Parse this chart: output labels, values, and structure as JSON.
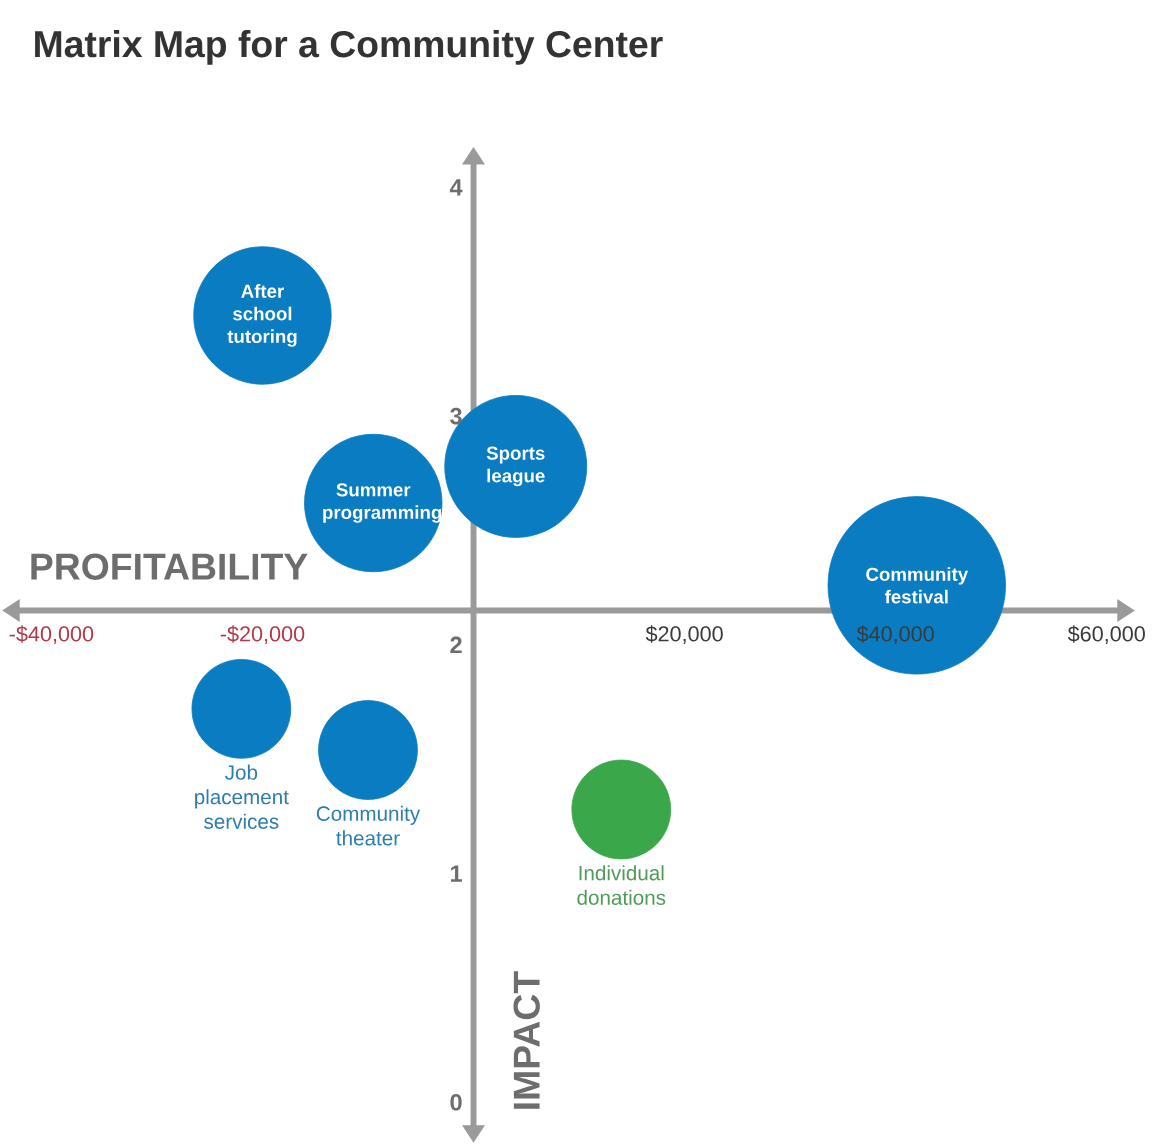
{
  "chart_data": {
    "type": "bubble",
    "title": "Matrix Map for a Community Center",
    "xlabel": "PROFITABILITY",
    "ylabel": "IMPACT",
    "xlim": [
      -43000,
      61000
    ],
    "ylim": [
      -0.1,
      4.1
    ],
    "xticks": [
      {
        "value": -40000,
        "label": "-$40,000"
      },
      {
        "value": -20000,
        "label": "-$20,000"
      },
      {
        "value": 20000,
        "label": "$20,000"
      },
      {
        "value": 40000,
        "label": "$40,000"
      },
      {
        "value": 60000,
        "label": "$60,000"
      }
    ],
    "yticks": [
      0,
      1,
      2,
      3,
      4
    ],
    "series": [
      {
        "color": "#0a7cc1",
        "x": [
          -20000,
          -9500,
          4000,
          42000,
          -22000,
          -10000
        ],
        "values": [
          3.44,
          2.62,
          2.78,
          2.26,
          1.72,
          1.54
        ],
        "sizes": [
          0.6,
          0.6,
          0.64,
          1,
          0.31,
          0.31
        ]
      },
      {
        "color": "#3aa74a",
        "x": [
          14000
        ],
        "values": [
          1.28
        ],
        "sizes": [
          0.31
        ]
      }
    ],
    "annotations": [
      {
        "text": "After school tutoring",
        "x": -20000,
        "y": 3.44
      },
      {
        "text": "Summer programming",
        "x": -9500,
        "y": 2.62
      },
      {
        "text": "Sports league",
        "x": 4000,
        "y": 2.78
      },
      {
        "text": "Community festival",
        "x": 42000,
        "y": 2.26
      },
      {
        "text": "Job placement services",
        "x": -22000,
        "y": 1.72
      },
      {
        "text": "Community theater",
        "x": -10000,
        "y": 1.54
      },
      {
        "text": "Individual donations",
        "x": 14000,
        "y": 1.28
      }
    ]
  }
}
